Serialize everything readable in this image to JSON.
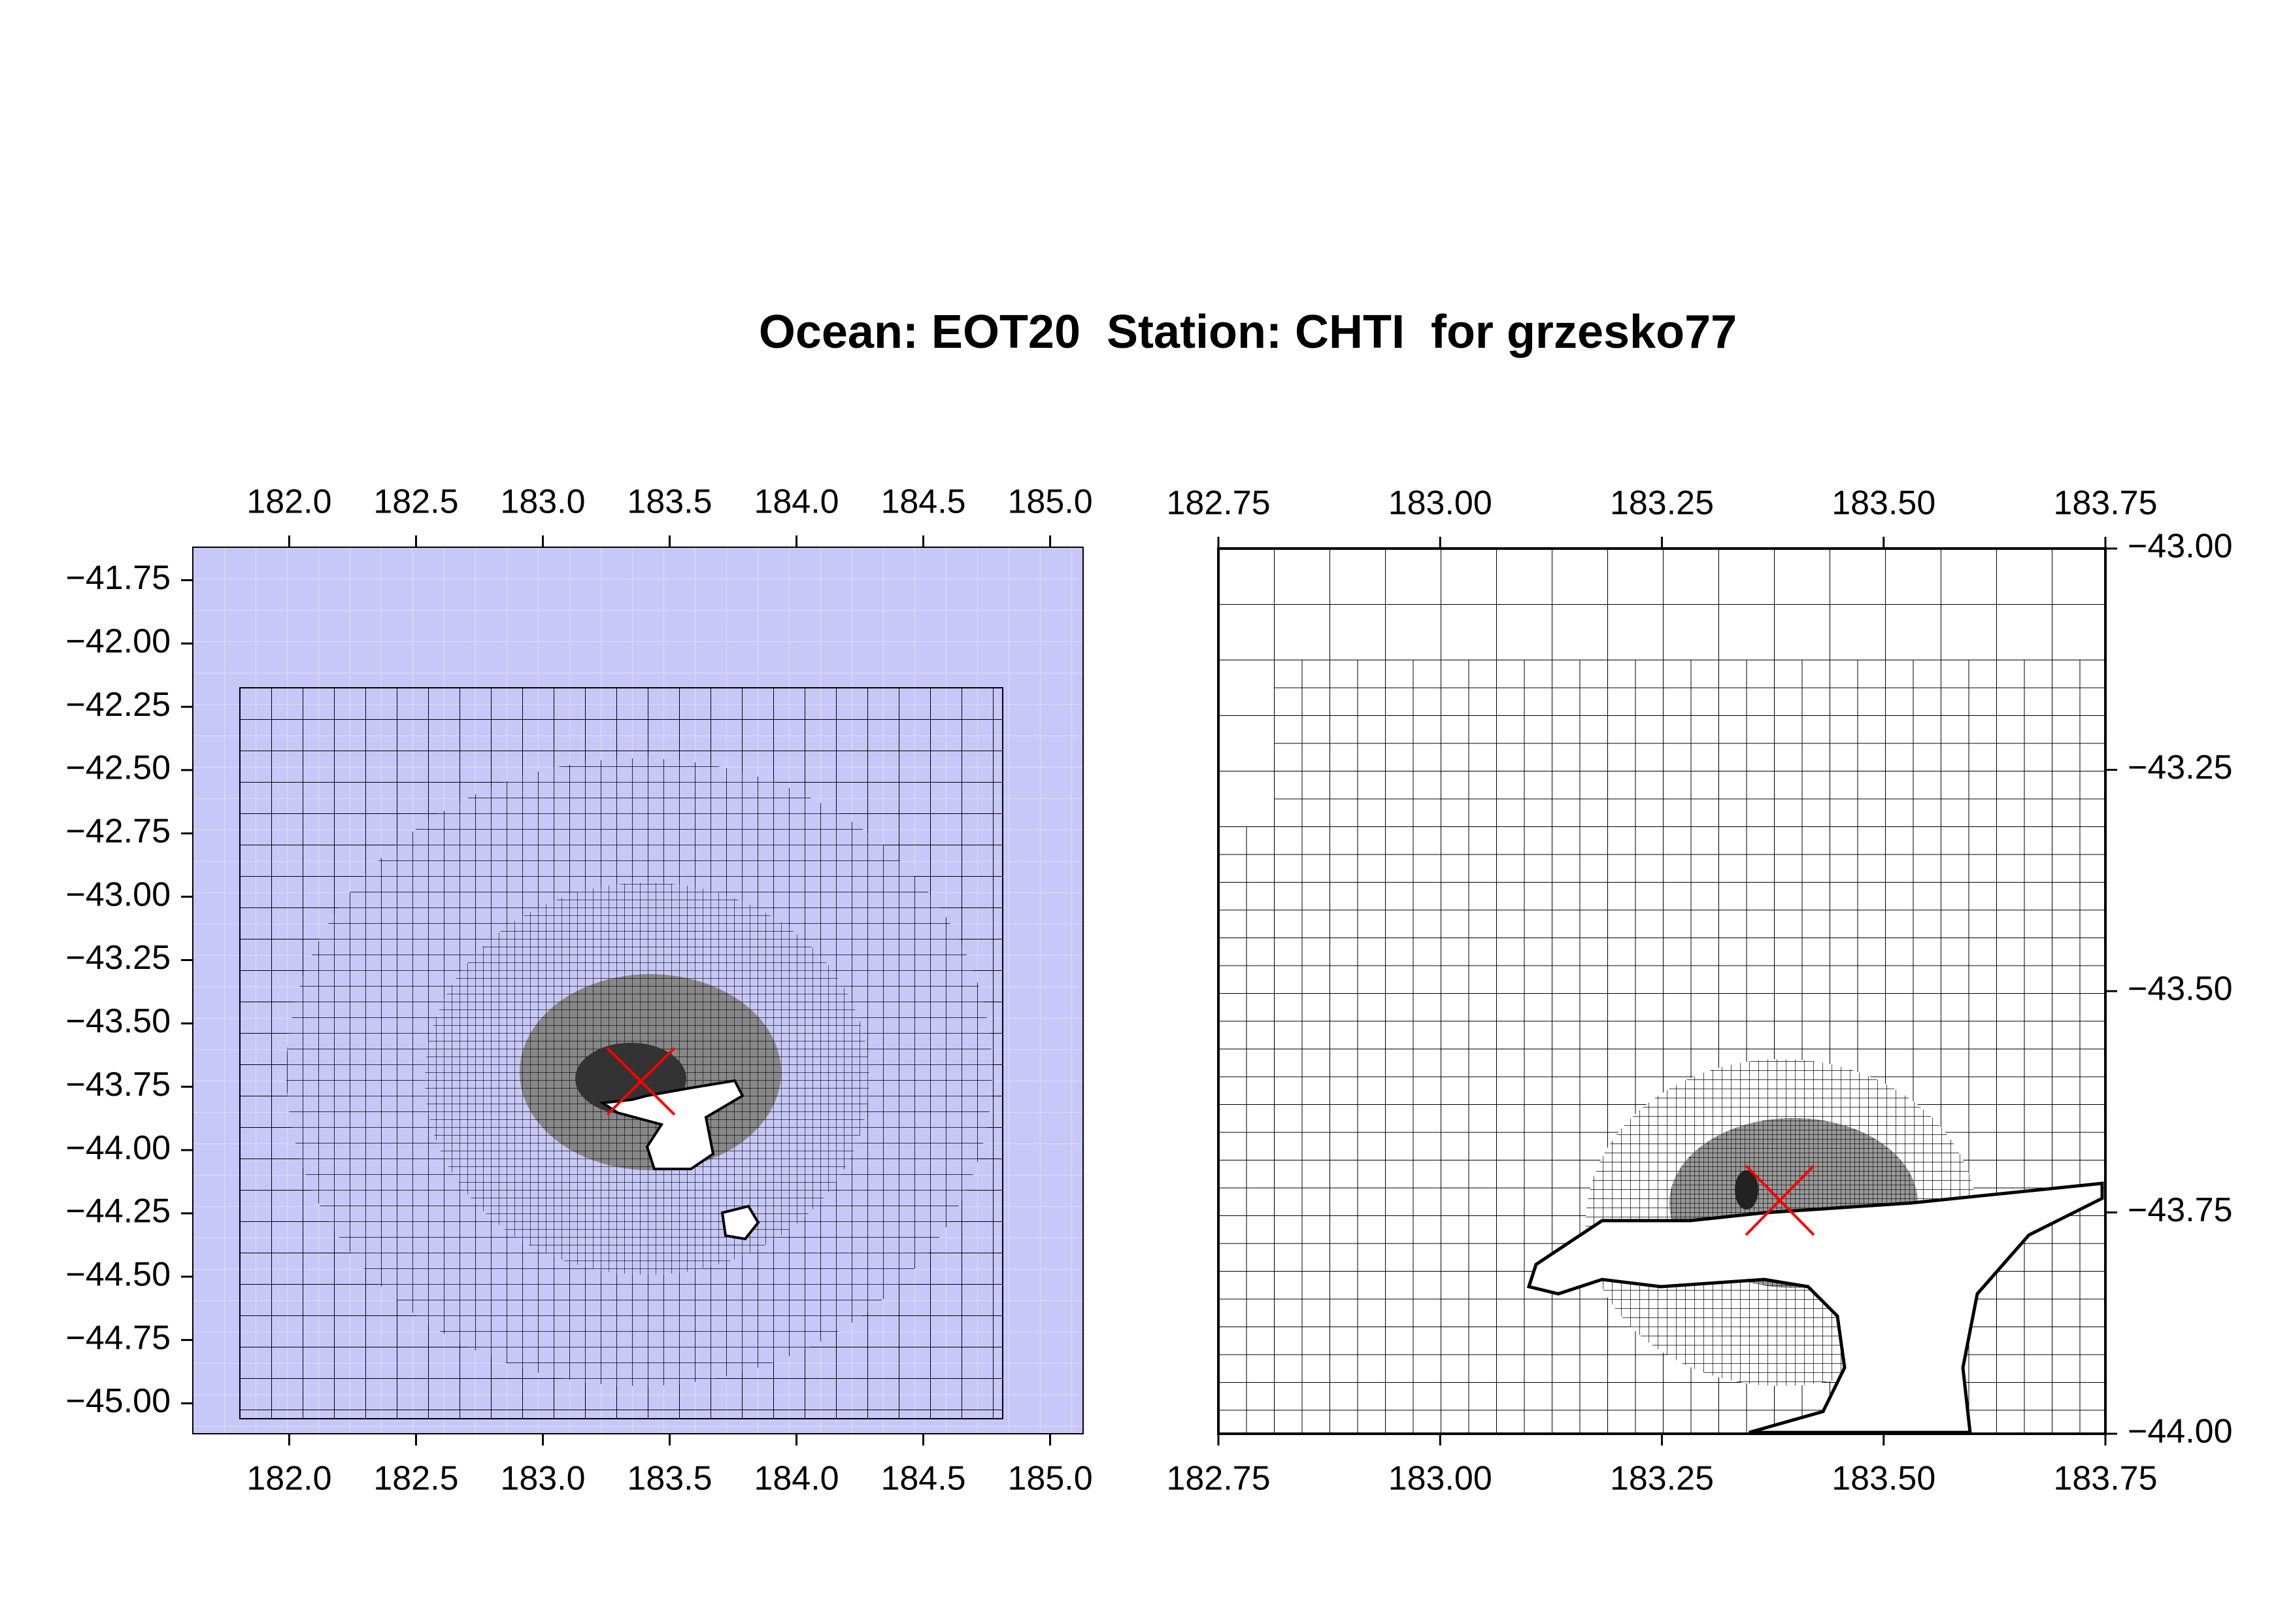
{
  "title": "Ocean: EOT20  Station: CHTI  for grzesko77",
  "panels": [
    {
      "xlim": [
        181.62,
        185.13
      ],
      "ylim": [
        -45.12,
        -41.62
      ],
      "yaxis_side": "left",
      "xticks": [
        {
          "value": 182.0,
          "label": "182.0"
        },
        {
          "value": 182.5,
          "label": "182.5"
        },
        {
          "value": 183.0,
          "label": "183.0"
        },
        {
          "value": 183.5,
          "label": "183.5"
        },
        {
          "value": 184.0,
          "label": "184.0"
        },
        {
          "value": 184.5,
          "label": "184.5"
        },
        {
          "value": 185.0,
          "label": "185.0"
        }
      ],
      "yticks": [
        {
          "value": -41.75,
          "label": "−41.75"
        },
        {
          "value": -42.0,
          "label": "−42.00"
        },
        {
          "value": -42.25,
          "label": "−42.25"
        },
        {
          "value": -42.5,
          "label": "−42.50"
        },
        {
          "value": -42.75,
          "label": "−42.75"
        },
        {
          "value": -43.0,
          "label": "−43.00"
        },
        {
          "value": -43.25,
          "label": "−43.25"
        },
        {
          "value": -43.5,
          "label": "−43.50"
        },
        {
          "value": -43.75,
          "label": "−43.75"
        },
        {
          "value": -44.0,
          "label": "−44.00"
        },
        {
          "value": -44.25,
          "label": "−44.25"
        },
        {
          "value": -44.5,
          "label": "−44.50"
        },
        {
          "value": -44.75,
          "label": "−44.75"
        },
        {
          "value": -45.0,
          "label": "−45.00"
        }
      ]
    },
    {
      "xlim": [
        182.75,
        183.75
      ],
      "ylim": [
        -44.0,
        -43.0
      ],
      "yaxis_side": "right",
      "xticks": [
        182.75,
        {
          "value": 183.0,
          "label": "183.00"
        },
        183.25,
        {
          "value": 183.5,
          "label": "183.50"
        },
        183.75
      ],
      "yticks": [
        {
          "value": -43.0,
          "label": "−43.00"
        },
        {
          "value": -43.25,
          "label": "−43.25"
        },
        {
          "value": -43.5,
          "label": "−43.50"
        },
        {
          "value": -43.75,
          "label": "−43.75"
        },
        {
          "value": -44.0,
          "label": "−44.00"
        }
      ]
    }
  ]
}
